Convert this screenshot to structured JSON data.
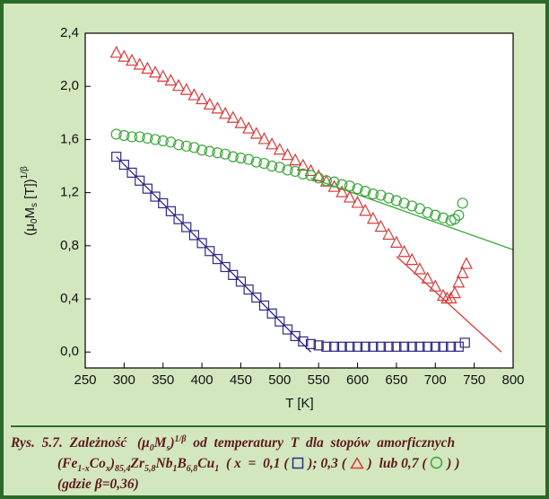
{
  "chart_data": {
    "type": "scatter",
    "xlabel": "T [K]",
    "ylabel_parts": [
      "(μ",
      "0",
      "M",
      "s",
      " [T])",
      "1/β"
    ],
    "xlim": [
      250,
      800
    ],
    "ylim": [
      -0.12,
      2.4
    ],
    "xticks": [
      250,
      300,
      350,
      400,
      450,
      500,
      550,
      600,
      650,
      700,
      750,
      800
    ],
    "yticks": [
      {
        "value": 0,
        "label": "0,0"
      },
      {
        "value": 0.4,
        "label": "0,4"
      },
      {
        "value": 0.8,
        "label": "0,8"
      },
      {
        "value": 1.2,
        "label": "1,2"
      },
      {
        "value": 1.6,
        "label": "1,6"
      },
      {
        "value": 2.0,
        "label": "2,0"
      },
      {
        "value": 2.4,
        "label": "2,4"
      }
    ],
    "series": [
      {
        "color": "#2e2a86",
        "marker": "square",
        "x": [
          290,
          300,
          310,
          320,
          330,
          340,
          350,
          360,
          370,
          380,
          390,
          400,
          410,
          420,
          430,
          440,
          450,
          460,
          470,
          480,
          490,
          500,
          510,
          520,
          530,
          540,
          550,
          560,
          570,
          580,
          590,
          600,
          610,
          620,
          630,
          640,
          650,
          660,
          670,
          680,
          690,
          700,
          710,
          720,
          730,
          738
        ],
        "values": [
          1.47,
          1.41,
          1.35,
          1.29,
          1.23,
          1.17,
          1.12,
          1.06,
          1.0,
          0.94,
          0.88,
          0.82,
          0.76,
          0.7,
          0.64,
          0.58,
          0.53,
          0.47,
          0.41,
          0.35,
          0.29,
          0.23,
          0.17,
          0.12,
          0.08,
          0.06,
          0.05,
          0.04,
          0.04,
          0.04,
          0.04,
          0.04,
          0.04,
          0.04,
          0.04,
          0.04,
          0.04,
          0.04,
          0.04,
          0.04,
          0.04,
          0.04,
          0.04,
          0.04,
          0.04,
          0.07
        ]
      },
      {
        "color": "#d63a3a",
        "marker": "triangle",
        "x": [
          290,
          300,
          310,
          320,
          330,
          340,
          350,
          360,
          370,
          380,
          390,
          400,
          410,
          420,
          430,
          440,
          450,
          460,
          470,
          480,
          490,
          500,
          510,
          520,
          530,
          540,
          550,
          560,
          570,
          580,
          590,
          600,
          610,
          620,
          630,
          640,
          650,
          660,
          670,
          680,
          690,
          700,
          710,
          715,
          720,
          725,
          730,
          735,
          740
        ],
        "values": [
          2.25,
          2.22,
          2.19,
          2.16,
          2.13,
          2.1,
          2.07,
          2.04,
          2.0,
          1.97,
          1.93,
          1.9,
          1.86,
          1.83,
          1.79,
          1.76,
          1.72,
          1.68,
          1.64,
          1.6,
          1.56,
          1.52,
          1.48,
          1.44,
          1.4,
          1.36,
          1.32,
          1.28,
          1.24,
          1.2,
          1.16,
          1.12,
          1.06,
          1.0,
          0.94,
          0.88,
          0.82,
          0.75,
          0.69,
          0.62,
          0.55,
          0.49,
          0.42,
          0.4,
          0.4,
          0.44,
          0.52,
          0.59,
          0.66
        ]
      },
      {
        "color": "#3aa63a",
        "marker": "circle",
        "x": [
          290,
          300,
          310,
          320,
          330,
          340,
          350,
          360,
          370,
          380,
          390,
          400,
          410,
          420,
          430,
          440,
          450,
          460,
          470,
          480,
          490,
          500,
          510,
          520,
          530,
          540,
          550,
          560,
          570,
          580,
          590,
          600,
          610,
          620,
          630,
          640,
          650,
          660,
          670,
          680,
          690,
          700,
          710,
          720,
          725,
          730,
          735
        ],
        "values": [
          1.64,
          1.63,
          1.62,
          1.62,
          1.61,
          1.6,
          1.59,
          1.58,
          1.56,
          1.55,
          1.54,
          1.52,
          1.51,
          1.5,
          1.49,
          1.47,
          1.46,
          1.45,
          1.43,
          1.42,
          1.4,
          1.39,
          1.37,
          1.36,
          1.34,
          1.33,
          1.31,
          1.29,
          1.28,
          1.26,
          1.25,
          1.23,
          1.21,
          1.19,
          1.18,
          1.16,
          1.14,
          1.12,
          1.1,
          1.08,
          1.05,
          1.03,
          1.01,
          0.99,
          1.0,
          1.03,
          1.12
        ]
      }
    ],
    "fits": [
      {
        "color": "#2e2a86",
        "x": [
          290,
          540
        ],
        "values": [
          1.47,
          0.0
        ]
      },
      {
        "color": "#d63a3a",
        "x": [
          650,
          785
        ],
        "values": [
          0.72,
          0.0
        ]
      },
      {
        "color": "#3aa63a",
        "x": [
          540,
          800
        ],
        "values": [
          1.31,
          0.77
        ]
      }
    ]
  },
  "caption": {
    "line1": [
      "Rys.  5.7.  Zależność   (μ",
      "0",
      "M",
      "s",
      ")",
      "1/β",
      "  od  temperatury  T  dla  stopów  amorficznych"
    ],
    "line2": [
      "(Fe",
      "1-x",
      "Co",
      "x",
      ")",
      "85,4",
      "Zr",
      "5,8",
      "Nb",
      "1",
      "B",
      "6,8",
      "Cu",
      "1",
      "  ( x  =  0,1 ( ",
      " ); 0,3 ( ",
      " )  lub 0,7 ( ",
      " ) )"
    ],
    "line3": [
      "(gdzie β=0,36)"
    ]
  }
}
